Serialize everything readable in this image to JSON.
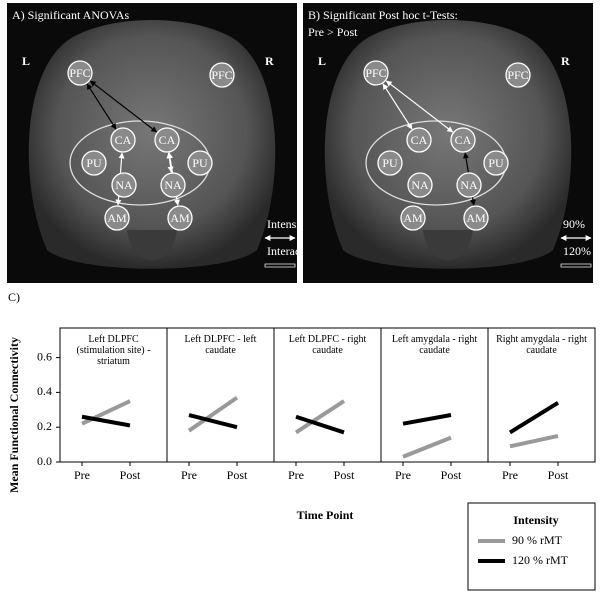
{
  "panel_a": {
    "title": "A) Significant  ANOVAs",
    "left": "L",
    "right": "R",
    "nodes": [
      "PFC",
      "PFC",
      "CA",
      "CA",
      "PU",
      "PU",
      "NA",
      "NA",
      "AM",
      "AM"
    ],
    "legend": [
      "Intensity",
      "Interaction"
    ]
  },
  "panel_b": {
    "title": [
      "B) Significant  Post hoc t-Tests:",
      "Pre > Post"
    ],
    "left": "L",
    "right": "R",
    "nodes": [
      "PFC",
      "PFC",
      "CA",
      "CA",
      "PU",
      "PU",
      "NA",
      "NA",
      "AM",
      "AM"
    ],
    "legend": [
      "90%",
      "120%"
    ]
  },
  "chart_data": {
    "type": "line",
    "panel_label": "C)",
    "ylabel": "Mean Functional  Connectivity",
    "xlabel": "Time Point",
    "panel_titles": [
      "Left DLPFC (stimulation site) - striatum",
      "Left DLPFC - left caudate",
      "Left DLPFC - right caudate",
      "Left amygdala - right caudate",
      "Right amygdala - right caudate"
    ],
    "categories": [
      "Pre",
      "Post"
    ],
    "ylim": [
      0,
      0.77
    ],
    "yticks": [
      {
        "value": 0,
        "label": "0.0"
      },
      0.2,
      0.4,
      0.6
    ],
    "legend_title": "Intensity",
    "series": [
      {
        "name": "90 % rMT",
        "color": "#999999",
        "values": [
          [
            0.22,
            0.35
          ],
          [
            0.18,
            0.37
          ],
          [
            0.17,
            0.35
          ],
          [
            0.03,
            0.14
          ],
          [
            0.09,
            0.15
          ]
        ]
      },
      {
        "name": "120 % rMT",
        "color": "#000000",
        "values": [
          [
            0.26,
            0.21
          ],
          [
            0.27,
            0.2
          ],
          [
            0.26,
            0.17
          ],
          [
            0.22,
            0.27
          ],
          [
            0.17,
            0.34
          ]
        ]
      }
    ]
  }
}
